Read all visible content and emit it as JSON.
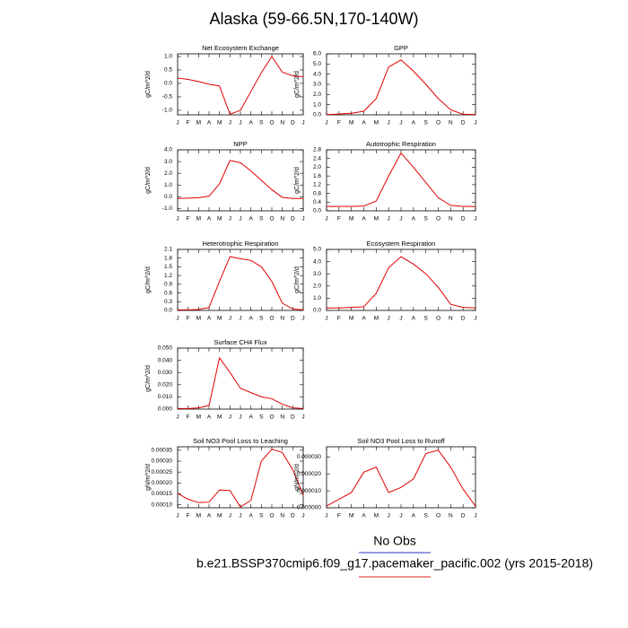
{
  "title": "Alaska (59-66.5N,170-140W)",
  "legend": [
    {
      "label": "No Obs",
      "color": "#3030c0"
    },
    {
      "label": "b.e21.BSSP370cmip6.f09_g17.pacemaker_pacific.002 (yrs 2015-2018)",
      "color": "#e02020"
    }
  ],
  "chart_data": [
    {
      "type": "line",
      "title": "Net Ecosystem Exchange",
      "ylabel": "gC/m^2/d",
      "color": "#e00000",
      "categories": [
        "J",
        "F",
        "M",
        "A",
        "M",
        "J",
        "J",
        "A",
        "S",
        "O",
        "N",
        "D",
        "J"
      ],
      "values": [
        0.2,
        0.15,
        0.07,
        -0.03,
        -0.1,
        -1.15,
        -1.0,
        -0.3,
        0.4,
        1.0,
        0.42,
        0.28,
        0.25
      ],
      "ylim": [
        -1.17,
        1.1
      ],
      "yticks": [
        {
          "value": -1,
          "label": "-1.0"
        },
        -0.5,
        {
          "value": 0,
          "label": "0.0"
        },
        0.5,
        {
          "value": 1,
          "label": "1.0"
        }
      ]
    },
    {
      "type": "line",
      "title": "GPP",
      "ylabel": "gC/m^2/d",
      "color": "#e00000",
      "categories": [
        "J",
        "F",
        "M",
        "A",
        "M",
        "J",
        "J",
        "A",
        "S",
        "O",
        "N",
        "D",
        "J"
      ],
      "values": [
        0.02,
        0.08,
        0.15,
        0.35,
        1.6,
        4.7,
        5.4,
        4.3,
        3.0,
        1.6,
        0.5,
        0.05,
        0.03
      ],
      "ylim": [
        0,
        6
      ],
      "yticks": [
        {
          "value": 0,
          "label": "0.0"
        },
        {
          "value": 1,
          "label": "1.0"
        },
        {
          "value": 2,
          "label": "2.0"
        },
        {
          "value": 3,
          "label": "3.0"
        },
        {
          "value": 4,
          "label": "4.0"
        },
        {
          "value": 5,
          "label": "5.0"
        },
        {
          "value": 6,
          "label": "6.0"
        }
      ]
    },
    {
      "type": "line",
      "title": "NPP",
      "ylabel": "gC/m^2/d",
      "color": "#e00000",
      "categories": [
        "J",
        "F",
        "M",
        "A",
        "M",
        "J",
        "J",
        "A",
        "S",
        "O",
        "N",
        "D",
        "J"
      ],
      "values": [
        -0.15,
        -0.12,
        -0.08,
        0.05,
        1.1,
        3.1,
        2.9,
        2.2,
        1.4,
        0.6,
        -0.05,
        -0.15,
        -0.15
      ],
      "ylim": [
        -1.2,
        4
      ],
      "yticks": [
        {
          "value": -1,
          "label": "-1.0"
        },
        {
          "value": 0,
          "label": "0.0"
        },
        {
          "value": 1,
          "label": "1.0"
        },
        {
          "value": 2,
          "label": "2.0"
        },
        {
          "value": 3,
          "label": "3.0"
        },
        {
          "value": 4,
          "label": "4.0"
        }
      ]
    },
    {
      "type": "line",
      "title": "Autotrophic Respiration",
      "ylabel": "gC/m^2/d",
      "color": "#e00000",
      "categories": [
        "J",
        "F",
        "M",
        "A",
        "M",
        "J",
        "J",
        "A",
        "S",
        "O",
        "N",
        "D",
        "J"
      ],
      "values": [
        0.2,
        0.2,
        0.2,
        0.22,
        0.45,
        1.6,
        2.65,
        2.0,
        1.3,
        0.6,
        0.25,
        0.2,
        0.2
      ],
      "ylim": [
        0,
        2.8
      ],
      "yticks": [
        {
          "value": 0,
          "label": "0.0"
        },
        0.4,
        0.8,
        1.2,
        1.6,
        {
          "value": 2,
          "label": "2.0"
        },
        2.4,
        2.8
      ]
    },
    {
      "type": "line",
      "title": "Heterotrophic Respiration",
      "ylabel": "gC/m^2/d",
      "color": "#e00000",
      "categories": [
        "J",
        "F",
        "M",
        "A",
        "M",
        "J",
        "J",
        "A",
        "S",
        "O",
        "N",
        "D",
        "J"
      ],
      "values": [
        0.02,
        0.02,
        0.03,
        0.1,
        1.0,
        1.85,
        1.78,
        1.72,
        1.5,
        1.0,
        0.25,
        0.05,
        0.02
      ],
      "ylim": [
        0,
        2.1
      ],
      "yticks": [
        {
          "value": 0,
          "label": "0.0"
        },
        0.3,
        0.6,
        0.9,
        1.2,
        1.5,
        1.8,
        2.1
      ]
    },
    {
      "type": "line",
      "title": "Ecosystem Respiration",
      "ylabel": "gC/m^2/d",
      "color": "#e00000",
      "categories": [
        "J",
        "F",
        "M",
        "A",
        "M",
        "J",
        "J",
        "A",
        "S",
        "O",
        "N",
        "D",
        "J"
      ],
      "values": [
        0.2,
        0.2,
        0.25,
        0.3,
        1.4,
        3.5,
        4.4,
        3.8,
        3.0,
        1.9,
        0.5,
        0.25,
        0.2
      ],
      "ylim": [
        0,
        5
      ],
      "yticks": [
        {
          "value": 0,
          "label": "0.0"
        },
        {
          "value": 1,
          "label": "1.0"
        },
        {
          "value": 2,
          "label": "2.0"
        },
        {
          "value": 3,
          "label": "3.0"
        },
        {
          "value": 4,
          "label": "4.0"
        },
        {
          "value": 5,
          "label": "5.0"
        }
      ]
    },
    {
      "type": "line",
      "title": "Surface CH4 Flux",
      "ylabel": "gC/m^2/d",
      "color": "#e00000",
      "categories": [
        "J",
        "F",
        "M",
        "A",
        "M",
        "J",
        "J",
        "A",
        "S",
        "O",
        "N",
        "D",
        "J"
      ],
      "values": [
        0.0005,
        0.0005,
        0.001,
        0.003,
        0.042,
        0.03,
        0.017,
        0.0135,
        0.01,
        0.0085,
        0.004,
        0.001,
        0.0005
      ],
      "ylim": [
        0,
        0.05
      ],
      "yticks": [
        {
          "value": 0,
          "label": "0.000"
        },
        {
          "value": 0.01,
          "label": "0.010"
        },
        {
          "value": 0.02,
          "label": "0.020"
        },
        {
          "value": 0.03,
          "label": "0.030"
        },
        {
          "value": 0.04,
          "label": "0.040"
        },
        {
          "value": 0.05,
          "label": "0.050"
        }
      ]
    },
    {
      "type": "line",
      "title": "Soil NO3 Pool Loss to Leaching",
      "ylabel": "gN/m^2/d",
      "color": "#e00000",
      "categories": [
        "J",
        "F",
        "M",
        "A",
        "M",
        "J",
        "J",
        "A",
        "S",
        "O",
        "N",
        "D",
        "J"
      ],
      "values": [
        0.000152,
        0.000125,
        0.00011,
        0.000112,
        0.000168,
        0.000165,
        9e-05,
        0.00012,
        0.0003,
        0.000355,
        0.00034,
        0.00026,
        0.000145
      ],
      "ylim": [
        8.6e-05,
        0.000366
      ],
      "yticks": [
        {
          "value": 0.0001,
          "label": "0.00010"
        },
        0.00015,
        {
          "value": 0.0002,
          "label": "0.00020"
        },
        0.00025,
        {
          "value": 0.0003,
          "label": "0.00030"
        },
        0.00035
      ]
    },
    {
      "type": "line",
      "title": "Soil NO3 Pool Loss to Runoff",
      "ylabel": "gN/m^2/d",
      "color": "#e00000",
      "categories": [
        "J",
        "F",
        "M",
        "A",
        "M",
        "J",
        "J",
        "A",
        "S",
        "O",
        "N",
        "D",
        "J"
      ],
      "values": [
        1e-06,
        5e-06,
        9e-06,
        2.1e-05,
        2.4e-05,
        9e-06,
        1.2e-05,
        1.7e-05,
        3.2e-05,
        3.4e-05,
        2.4e-05,
        1.1e-05,
        1e-06
      ],
      "ylim": [
        0,
        3.6e-05
      ],
      "yticks": [
        {
          "value": 0,
          "label": "0.000000"
        },
        {
          "value": 1e-05,
          "label": "0.000010"
        },
        {
          "value": 2e-05,
          "label": "0.000020"
        },
        {
          "value": 3e-05,
          "label": "0.000030"
        }
      ]
    }
  ]
}
